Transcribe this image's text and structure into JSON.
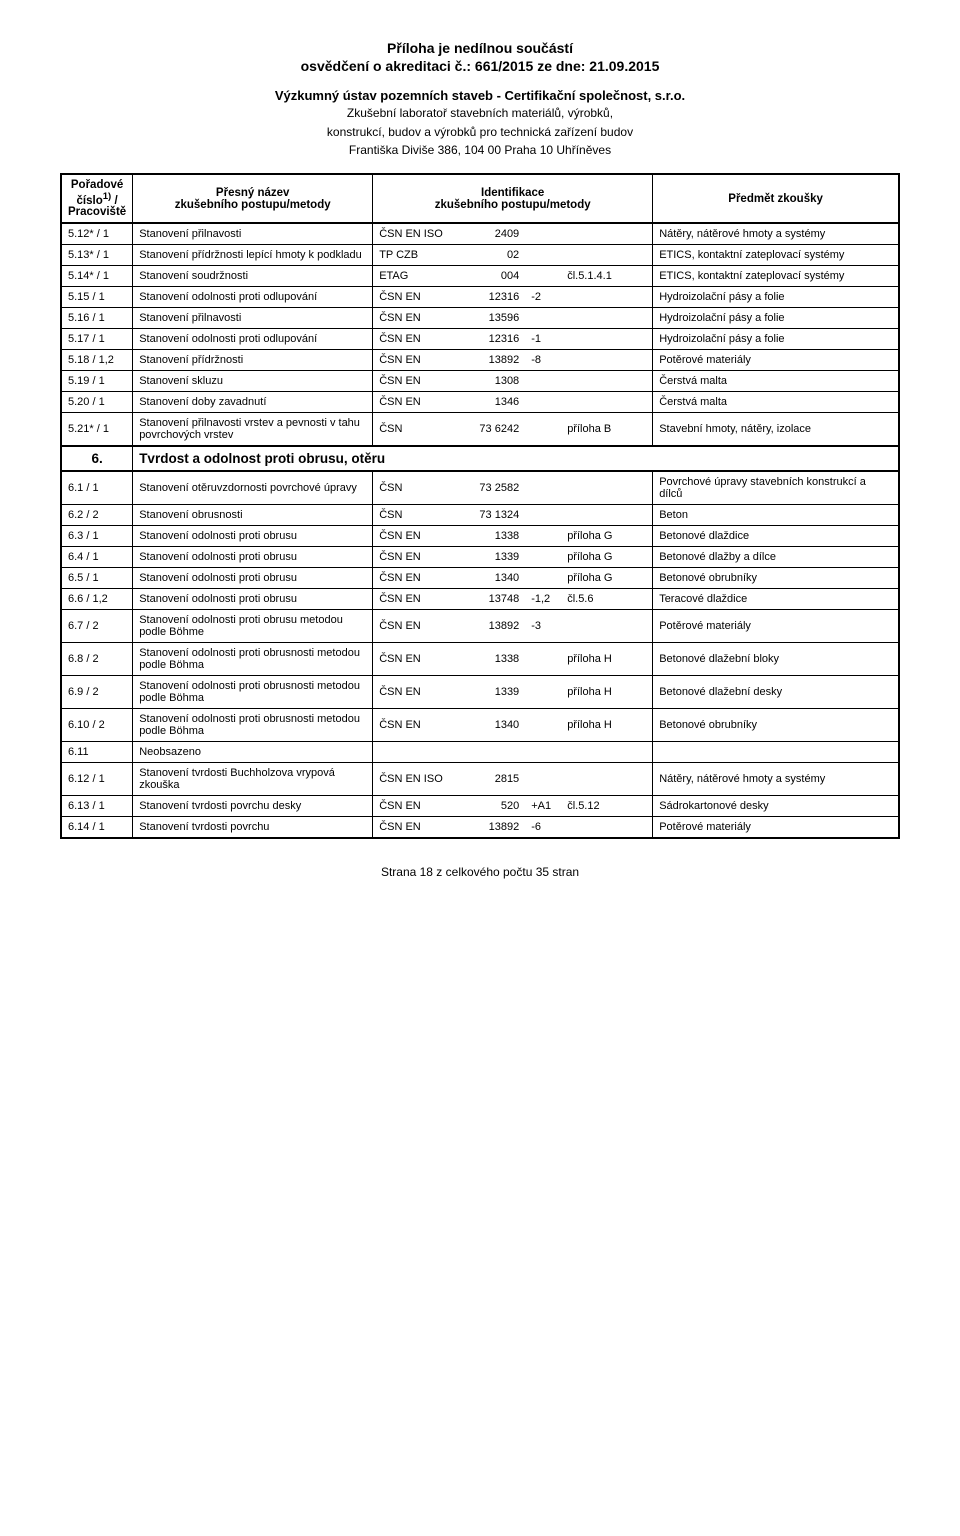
{
  "header": {
    "line1": "Příloha je nedílnou součástí",
    "line2": "osvědčení o akreditaci č.: 661/2015  ze dne: 21.09.2015",
    "org": "Výzkumný ústav pozemních staveb - Certifikační společnost, s.r.o.",
    "desc1": "Zkušební laboratoř stavebních materiálů, výrobků,",
    "desc2": "konstrukcí, budov a výrobků pro technická zařízení budov",
    "addr": "Františka Diviše 386, 104 00 Praha 10 Uhříněves"
  },
  "columns": {
    "c1a": "Pořadové",
    "c1b": "číslo",
    "c1c": " /",
    "c1d": "Pracoviště",
    "c1sup": "1)",
    "c2a": "Přesný název",
    "c2b": "zkušebního postupu/metody",
    "c3a": "Identifikace",
    "c3b": "zkušebního postupu/metody",
    "c4": "Předmět zkoušky"
  },
  "rows": [
    {
      "id": "5.12* / 1",
      "name": "Stanovení přilnavosti",
      "i1": "ČSN EN ISO",
      "i2": "2409",
      "i3": "",
      "i4": "",
      "subj": "Nátěry, nátěrové hmoty a systémy"
    },
    {
      "id": "5.13* / 1",
      "name": "Stanovení přídržnosti lepící hmoty k podkladu",
      "i1": "TP CZB",
      "i2": "02",
      "i3": "",
      "i4": "",
      "subj": "ETICS, kontaktní zateplovací systémy"
    },
    {
      "id": "5.14* / 1",
      "name": "Stanovení soudržnosti",
      "i1": "ETAG",
      "i2": "004",
      "i3": "",
      "i4": "čl.5.1.4.1",
      "subj": "ETICS, kontaktní zateplovací systémy"
    },
    {
      "id": "5.15 / 1",
      "name": "Stanovení odolnosti proti odlupování",
      "i1": "ČSN EN",
      "i2": "12316",
      "i3": "-2",
      "i4": "",
      "subj": "Hydroizolační pásy a folie"
    },
    {
      "id": "5.16 / 1",
      "name": "Stanovení přilnavosti",
      "i1": "ČSN EN",
      "i2": "13596",
      "i3": "",
      "i4": "",
      "subj": "Hydroizolační pásy a folie"
    },
    {
      "id": "5.17 / 1",
      "name": "Stanovení odolnosti proti odlupování",
      "i1": "ČSN EN",
      "i2": "12316",
      "i3": "-1",
      "i4": "",
      "subj": "Hydroizolační pásy a folie"
    },
    {
      "id": "5.18 / 1,2",
      "name": "Stanovení přídržnosti",
      "i1": "ČSN EN",
      "i2": "13892",
      "i3": "-8",
      "i4": "",
      "subj": "Potěrové materiály"
    },
    {
      "id": "5.19 / 1",
      "name": "Stanovení skluzu",
      "i1": "ČSN EN",
      "i2": "1308",
      "i3": "",
      "i4": "",
      "subj": "Čerstvá malta"
    },
    {
      "id": "5.20 / 1",
      "name": "Stanovení doby zavadnutí",
      "i1": "ČSN EN",
      "i2": "1346",
      "i3": "",
      "i4": "",
      "subj": "Čerstvá malta"
    },
    {
      "id": "5.21* / 1",
      "name": "Stanovení přilnavosti vrstev a pevnosti v tahu povrchových vrstev",
      "i1": "ČSN",
      "i2": "73 6242",
      "i3": "",
      "i4": "příloha B",
      "subj": "Stavební hmoty, nátěry, izolace"
    }
  ],
  "section": {
    "num": "6.",
    "title": "Tvrdost a odolnost proti obrusu, otěru"
  },
  "rows2": [
    {
      "id": "6.1 / 1",
      "name": "Stanovení otěruvzdornosti povrchové úpravy",
      "i1": "ČSN",
      "i2": "73 2582",
      "i3": "",
      "i4": "",
      "subj": "Povrchové úpravy stavebních konstrukcí a dílců"
    },
    {
      "id": "6.2 / 2",
      "name": "Stanovení obrusnosti",
      "i1": "ČSN",
      "i2": "73 1324",
      "i3": "",
      "i4": "",
      "subj": "Beton"
    },
    {
      "id": "6.3 / 1",
      "name": "Stanovení odolnosti proti obrusu",
      "i1": "ČSN EN",
      "i2": "1338",
      "i3": "",
      "i4": "příloha G",
      "subj": "Betonové dlaždice"
    },
    {
      "id": "6.4 / 1",
      "name": "Stanovení odolnosti proti obrusu",
      "i1": "ČSN EN",
      "i2": "1339",
      "i3": "",
      "i4": "příloha G",
      "subj": "Betonové dlažby a dílce"
    },
    {
      "id": "6.5 / 1",
      "name": "Stanovení odolnosti proti obrusu",
      "i1": "ČSN EN",
      "i2": "1340",
      "i3": "",
      "i4": "příloha G",
      "subj": "Betonové obrubníky"
    },
    {
      "id": "6.6 / 1,2",
      "name": "Stanovení odolnosti proti obrusu",
      "i1": "ČSN EN",
      "i2": "13748",
      "i3": "-1,2",
      "i4": "čl.5.6",
      "subj": "Teracové dlaždice"
    },
    {
      "id": "6.7 / 2",
      "name": "Stanovení odolnosti proti obrusu metodou podle Böhme",
      "i1": "ČSN EN",
      "i2": "13892",
      "i3": "-3",
      "i4": "",
      "subj": "Potěrové materiály"
    },
    {
      "id": "6.8 / 2",
      "name": "Stanovení odolnosti proti obrusnosti metodou podle Böhma",
      "i1": "ČSN EN",
      "i2": "1338",
      "i3": "",
      "i4": "příloha H",
      "subj": "Betonové dlažební bloky"
    },
    {
      "id": "6.9 / 2",
      "name": "Stanovení odolnosti proti obrusnosti metodou podle Böhma",
      "i1": "ČSN EN",
      "i2": "1339",
      "i3": "",
      "i4": "příloha H",
      "subj": "Betonové dlažební desky"
    },
    {
      "id": "6.10 / 2",
      "name": "Stanovení odolnosti proti obrusnosti metodou podle Böhma",
      "i1": "ČSN EN",
      "i2": "1340",
      "i3": "",
      "i4": "příloha H",
      "subj": "Betonové obrubníky"
    },
    {
      "id": "6.11",
      "name": "Neobsazeno",
      "i1": "",
      "i2": "",
      "i3": "",
      "i4": "",
      "subj": ""
    },
    {
      "id": "6.12 / 1",
      "name": "Stanovení tvrdosti Buchholzova vrypová zkouška",
      "i1": "ČSN EN ISO",
      "i2": "2815",
      "i3": "",
      "i4": "",
      "subj": "Nátěry, nátěrové hmoty a systémy"
    },
    {
      "id": "6.13 / 1",
      "name": "Stanovení tvrdosti povrchu desky",
      "i1": "ČSN EN",
      "i2": "520",
      "i3": "+A1",
      "i4": "čl.5.12",
      "subj": "Sádrokartonové desky"
    },
    {
      "id": "6.14 / 1",
      "name": "Stanovení tvrdosti povrchu",
      "i1": "ČSN EN",
      "i2": "13892",
      "i3": "-6",
      "i4": "",
      "subj": "Potěrové materiály"
    }
  ],
  "footer": "Strana 18 z celkového počtu 35 stran"
}
